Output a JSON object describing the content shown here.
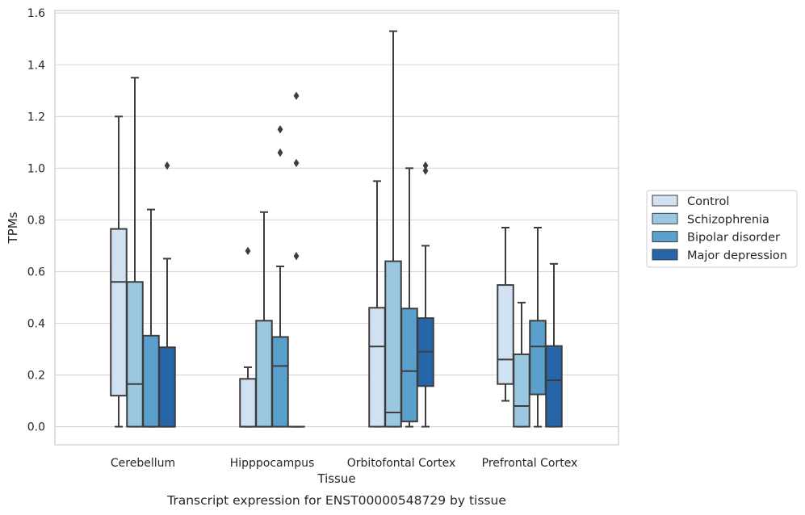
{
  "caption": "Transcript expression for ENST00000548729 by tissue",
  "chart_data": {
    "type": "box",
    "xlabel": "Tissue",
    "ylabel": "TPMs",
    "ylim": [
      -0.07,
      1.61
    ],
    "yticks": [
      "0.0",
      "0.2",
      "0.4",
      "0.6",
      "0.8",
      "1.0",
      "1.2",
      "1.4",
      "1.6"
    ],
    "grid": "horizontal",
    "legend_position": "right",
    "categories": [
      "Cerebellum",
      "Hipppocampus",
      "Orbitofontal Cortex",
      "Prefrontal Cortex"
    ],
    "series": [
      {
        "name": "Control",
        "color": "#d0e1f2",
        "boxes": [
          {
            "whislo": 0.0,
            "q1": 0.12,
            "med": 0.56,
            "q3": 0.765,
            "whishi": 1.2,
            "fliers": []
          },
          {
            "whislo": 0.0,
            "q1": 0.0,
            "med": 0.0,
            "q3": 0.185,
            "whishi": 0.23,
            "fliers": [
              0.68
            ]
          },
          {
            "whislo": 0.0,
            "q1": 0.0,
            "med": 0.31,
            "q3": 0.46,
            "whishi": 0.95,
            "fliers": []
          },
          {
            "whislo": 0.1,
            "q1": 0.165,
            "med": 0.26,
            "q3": 0.548,
            "whishi": 0.77,
            "fliers": []
          }
        ]
      },
      {
        "name": "Schizophrenia",
        "color": "#9ac8e0",
        "boxes": [
          {
            "whislo": 0.0,
            "q1": 0.0,
            "med": 0.165,
            "q3": 0.56,
            "whishi": 1.35,
            "fliers": []
          },
          {
            "whislo": 0.0,
            "q1": 0.0,
            "med": 0.0,
            "q3": 0.41,
            "whishi": 0.83,
            "fliers": []
          },
          {
            "whislo": 0.0,
            "q1": 0.0,
            "med": 0.055,
            "q3": 0.64,
            "whishi": 1.53,
            "fliers": []
          },
          {
            "whislo": 0.0,
            "q1": 0.0,
            "med": 0.08,
            "q3": 0.28,
            "whishi": 0.48,
            "fliers": []
          }
        ]
      },
      {
        "name": "Bipolar disorder",
        "color": "#5aa0cd",
        "boxes": [
          {
            "whislo": 0.0,
            "q1": 0.0,
            "med": 0.0,
            "q3": 0.352,
            "whishi": 0.84,
            "fliers": []
          },
          {
            "whislo": 0.0,
            "q1": 0.0,
            "med": 0.235,
            "q3": 0.347,
            "whishi": 0.62,
            "fliers": [
              1.06,
              1.15
            ]
          },
          {
            "whislo": 0.0,
            "q1": 0.02,
            "med": 0.215,
            "q3": 0.457,
            "whishi": 1.0,
            "fliers": []
          },
          {
            "whislo": 0.0,
            "q1": 0.125,
            "med": 0.31,
            "q3": 0.41,
            "whishi": 0.77,
            "fliers": []
          }
        ]
      },
      {
        "name": "Major depression",
        "color": "#2666a8",
        "boxes": [
          {
            "whislo": 0.0,
            "q1": 0.0,
            "med": 0.0,
            "q3": 0.307,
            "whishi": 0.65,
            "fliers": [
              1.01
            ]
          },
          {
            "whislo": 0.0,
            "q1": 0.0,
            "med": 0.0,
            "q3": 0.0,
            "whishi": 0.0,
            "fliers": [
              0.66,
              1.02,
              1.28
            ]
          },
          {
            "whislo": 0.0,
            "q1": 0.157,
            "med": 0.29,
            "q3": 0.42,
            "whishi": 0.7,
            "fliers": [
              0.99,
              1.01
            ]
          },
          {
            "whislo": 0.0,
            "q1": 0.0,
            "med": 0.18,
            "q3": 0.312,
            "whishi": 0.63,
            "fliers": []
          }
        ]
      }
    ]
  }
}
